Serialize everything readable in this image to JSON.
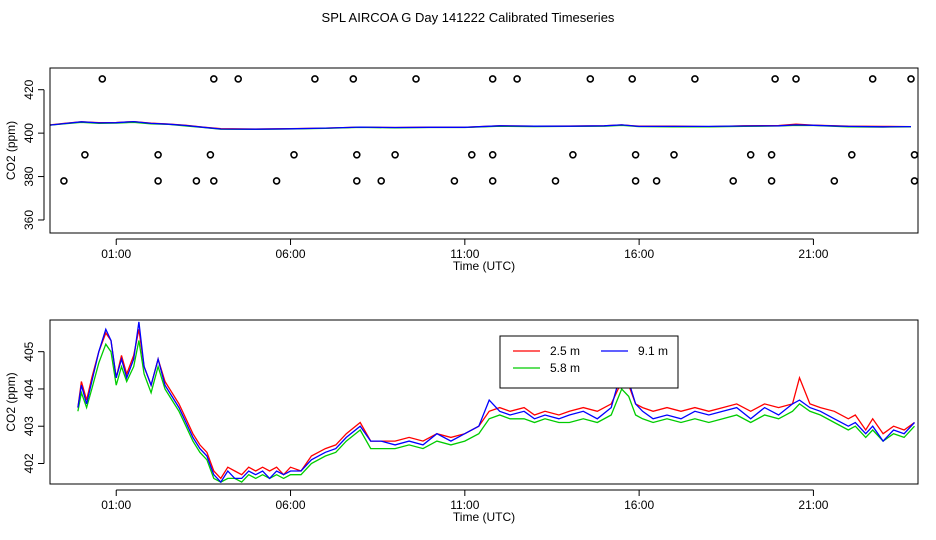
{
  "title": "SPL AIRCOA G  Day 141222  Calibrated Timeseries",
  "chart_data": [
    {
      "type": "line",
      "panel": "top",
      "xlabel": "Time (UTC)",
      "ylabel": "CO2 (ppm)",
      "x_ticks": [
        1,
        6,
        11,
        16,
        21
      ],
      "x_tick_labels": [
        "01:00",
        "06:00",
        "11:00",
        "16:00",
        "21:00"
      ],
      "xlim": [
        -0.9,
        24.0
      ],
      "ylim": [
        354,
        430
      ],
      "y_ticks": [
        360,
        380,
        400,
        420
      ],
      "y_tick_labels": [
        "360",
        "380",
        "400",
        "420"
      ],
      "grid": false,
      "legend": "none",
      "series": [
        {
          "color": "#ff0000",
          "x": [
            -1.0,
            -0.5,
            0.0,
            0.5,
            1.0,
            1.5,
            2.0,
            2.5,
            3.0,
            3.5,
            4.0,
            5.0,
            6.0,
            7.0,
            8.0,
            9.0,
            10.0,
            11.0,
            12.0,
            13.0,
            14.0,
            15.0,
            15.5,
            16.0,
            17.0,
            18.0,
            19.0,
            20.0,
            20.5,
            21.0,
            22.0,
            23.0,
            23.8
          ],
          "y": [
            403.6,
            404.5,
            405.2,
            404.8,
            404.9,
            405.3,
            404.6,
            404.2,
            403.6,
            402.8,
            402.1,
            401.9,
            402.1,
            402.3,
            402.8,
            402.6,
            402.8,
            402.7,
            403.4,
            403.2,
            403.3,
            403.4,
            403.8,
            403.2,
            403.2,
            403.0,
            403.4,
            403.5,
            404.1,
            403.7,
            403.2,
            403.1,
            403.0
          ]
        },
        {
          "color": "#00cc00",
          "x": [
            -1.0,
            -0.5,
            0.0,
            0.5,
            1.0,
            1.5,
            2.0,
            2.5,
            3.0,
            3.5,
            4.0,
            5.0,
            6.0,
            7.0,
            8.0,
            9.0,
            10.0,
            11.0,
            12.0,
            13.0,
            14.0,
            15.0,
            15.5,
            16.0,
            17.0,
            18.0,
            19.0,
            20.0,
            20.5,
            21.0,
            22.0,
            23.0,
            23.8
          ],
          "y": [
            403.5,
            404.3,
            405.0,
            404.5,
            404.6,
            405.0,
            404.3,
            404.0,
            403.3,
            402.6,
            401.8,
            401.7,
            401.9,
            402.2,
            402.7,
            402.4,
            402.6,
            402.6,
            403.2,
            403.0,
            403.1,
            403.2,
            403.6,
            403.0,
            402.9,
            402.9,
            403.1,
            403.3,
            403.6,
            403.5,
            402.9,
            402.8,
            402.9
          ]
        },
        {
          "color": "#0000ff",
          "x": [
            -1.0,
            -0.5,
            0.0,
            0.5,
            1.0,
            1.5,
            2.0,
            2.5,
            3.0,
            3.5,
            4.0,
            5.0,
            6.0,
            7.0,
            8.0,
            9.0,
            10.0,
            11.0,
            12.0,
            13.0,
            14.0,
            15.0,
            15.5,
            16.0,
            17.0,
            18.0,
            19.0,
            20.0,
            20.5,
            21.0,
            22.0,
            23.0,
            23.8
          ],
          "y": [
            403.5,
            404.4,
            405.2,
            404.7,
            404.8,
            405.3,
            404.5,
            404.1,
            403.5,
            402.7,
            401.9,
            401.8,
            402.0,
            402.3,
            402.8,
            402.6,
            402.7,
            402.7,
            403.4,
            403.2,
            403.2,
            403.4,
            403.8,
            403.1,
            403.1,
            403.1,
            403.3,
            403.4,
            403.8,
            403.6,
            403.1,
            402.9,
            403.0
          ]
        }
      ],
      "markers": {
        "shape": "open-circle",
        "x": [
          -0.5,
          0.1,
          0.6,
          2.2,
          2.2,
          3.3,
          3.7,
          3.8,
          3.8,
          4.5,
          5.6,
          6.1,
          6.7,
          7.8,
          7.9,
          7.9,
          8.6,
          9.0,
          9.6,
          10.7,
          11.2,
          11.8,
          11.8,
          11.8,
          12.5,
          13.6,
          14.1,
          14.6,
          15.8,
          15.9,
          15.9,
          16.5,
          17.0,
          17.6,
          18.7,
          19.2,
          19.8,
          19.8,
          19.9,
          20.5,
          21.6,
          22.1,
          22.7,
          23.8,
          23.9,
          23.9
        ],
        "y": [
          378,
          390,
          425,
          378,
          390,
          378,
          390,
          425,
          378,
          425,
          378,
          390,
          425,
          425,
          378,
          390,
          378,
          390,
          425,
          378,
          390,
          425,
          390,
          378,
          425,
          378,
          390,
          425,
          425,
          390,
          378,
          378,
          390,
          425,
          378,
          390,
          378,
          390,
          425,
          425,
          378,
          390,
          425,
          425,
          390,
          378
        ]
      }
    },
    {
      "type": "line",
      "panel": "bottom",
      "xlabel": "Time (UTC)",
      "ylabel": "CO2 (ppm)",
      "x_ticks": [
        1,
        6,
        11,
        16,
        21
      ],
      "x_tick_labels": [
        "01:00",
        "06:00",
        "11:00",
        "16:00",
        "21:00"
      ],
      "xlim": [
        -0.9,
        24.0
      ],
      "ylim": [
        401.45,
        405.85
      ],
      "y_ticks": [
        402,
        403,
        404,
        405
      ],
      "y_tick_labels": [
        "402",
        "403",
        "404",
        "405"
      ],
      "grid": false,
      "legend": "top-center",
      "series": [
        {
          "name": "2.5 m",
          "color": "#ff0000",
          "x": [
            -0.1,
            0.0,
            0.15,
            0.3,
            0.5,
            0.7,
            0.85,
            1.0,
            1.15,
            1.3,
            1.5,
            1.65,
            1.8,
            2.0,
            2.2,
            2.4,
            2.6,
            2.8,
            3.0,
            3.2,
            3.4,
            3.6,
            3.8,
            4.0,
            4.2,
            4.4,
            4.6,
            4.8,
            5.0,
            5.2,
            5.4,
            5.6,
            5.8,
            6.0,
            6.3,
            6.6,
            7.0,
            7.3,
            7.6,
            8.0,
            8.3,
            8.6,
            9.0,
            9.4,
            9.8,
            10.2,
            10.6,
            11.0,
            11.4,
            11.7,
            12.0,
            12.3,
            12.7,
            13.0,
            13.3,
            13.7,
            14.0,
            14.4,
            14.8,
            15.2,
            15.5,
            15.7,
            15.9,
            16.1,
            16.4,
            16.8,
            17.2,
            17.6,
            18.0,
            18.4,
            18.8,
            19.2,
            19.6,
            20.0,
            20.4,
            20.6,
            20.9,
            21.2,
            21.6,
            22.0,
            22.2,
            22.5,
            22.7,
            23.0,
            23.3,
            23.6,
            23.9
          ],
          "y": [
            403.5,
            404.2,
            403.7,
            404.3,
            405.0,
            405.5,
            405.3,
            404.3,
            404.9,
            404.4,
            404.9,
            405.6,
            404.6,
            404.1,
            404.8,
            404.2,
            403.9,
            403.6,
            403.2,
            402.8,
            402.5,
            402.3,
            401.8,
            401.6,
            401.9,
            401.8,
            401.7,
            401.9,
            401.8,
            401.9,
            401.8,
            401.9,
            401.7,
            401.9,
            401.8,
            402.2,
            402.4,
            402.5,
            402.8,
            403.1,
            402.6,
            402.6,
            402.6,
            402.7,
            402.6,
            402.8,
            402.7,
            402.8,
            403.0,
            403.4,
            403.5,
            403.4,
            403.5,
            403.3,
            403.4,
            403.3,
            403.4,
            403.5,
            403.4,
            403.6,
            404.2,
            404.1,
            403.6,
            403.5,
            403.4,
            403.5,
            403.4,
            403.5,
            403.4,
            403.5,
            403.6,
            403.4,
            403.6,
            403.5,
            403.6,
            404.3,
            403.6,
            403.5,
            403.4,
            403.2,
            403.3,
            402.9,
            403.2,
            402.8,
            403.0,
            402.9,
            403.1
          ]
        },
        {
          "name": "5.8 m",
          "color": "#00cc00",
          "x": [
            -0.1,
            0.0,
            0.15,
            0.3,
            0.5,
            0.7,
            0.85,
            1.0,
            1.15,
            1.3,
            1.5,
            1.65,
            1.8,
            2.0,
            2.2,
            2.4,
            2.6,
            2.8,
            3.0,
            3.2,
            3.4,
            3.6,
            3.8,
            4.0,
            4.2,
            4.4,
            4.6,
            4.8,
            5.0,
            5.2,
            5.4,
            5.6,
            5.8,
            6.0,
            6.3,
            6.6,
            7.0,
            7.3,
            7.6,
            8.0,
            8.3,
            8.6,
            9.0,
            9.4,
            9.8,
            10.2,
            10.6,
            11.0,
            11.4,
            11.7,
            12.0,
            12.3,
            12.7,
            13.0,
            13.3,
            13.7,
            14.0,
            14.4,
            14.8,
            15.2,
            15.5,
            15.7,
            15.9,
            16.1,
            16.4,
            16.8,
            17.2,
            17.6,
            18.0,
            18.4,
            18.8,
            19.2,
            19.6,
            20.0,
            20.4,
            20.6,
            20.9,
            21.2,
            21.6,
            22.0,
            22.2,
            22.5,
            22.7,
            23.0,
            23.3,
            23.6,
            23.9
          ],
          "y": [
            403.4,
            403.9,
            403.5,
            404.0,
            404.7,
            405.2,
            405.0,
            404.1,
            404.6,
            404.2,
            404.6,
            405.3,
            404.4,
            403.9,
            404.6,
            404.0,
            403.7,
            403.4,
            403.0,
            402.6,
            402.3,
            402.1,
            401.6,
            401.5,
            401.6,
            401.6,
            401.5,
            401.7,
            401.6,
            401.7,
            401.6,
            401.7,
            401.6,
            401.7,
            401.7,
            402.0,
            402.2,
            402.3,
            402.6,
            402.9,
            402.4,
            402.4,
            402.4,
            402.5,
            402.4,
            402.6,
            402.5,
            402.6,
            402.8,
            403.2,
            403.3,
            403.2,
            403.2,
            403.1,
            403.2,
            403.1,
            403.1,
            403.2,
            403.1,
            403.3,
            404.0,
            403.8,
            403.3,
            403.2,
            403.1,
            403.2,
            403.1,
            403.2,
            403.1,
            403.2,
            403.3,
            403.1,
            403.3,
            403.2,
            403.4,
            403.6,
            403.4,
            403.3,
            403.1,
            402.9,
            403.0,
            402.7,
            402.9,
            402.6,
            402.8,
            402.7,
            403.0
          ]
        },
        {
          "name": "9.1 m",
          "color": "#0000ff",
          "x": [
            -0.1,
            0.0,
            0.15,
            0.3,
            0.5,
            0.7,
            0.85,
            1.0,
            1.15,
            1.3,
            1.5,
            1.65,
            1.8,
            2.0,
            2.2,
            2.4,
            2.6,
            2.8,
            3.0,
            3.2,
            3.4,
            3.6,
            3.8,
            4.0,
            4.2,
            4.4,
            4.6,
            4.8,
            5.0,
            5.2,
            5.4,
            5.6,
            5.8,
            6.0,
            6.3,
            6.6,
            7.0,
            7.3,
            7.6,
            8.0,
            8.3,
            8.6,
            9.0,
            9.4,
            9.8,
            10.2,
            10.6,
            11.0,
            11.4,
            11.7,
            12.0,
            12.3,
            12.7,
            13.0,
            13.3,
            13.7,
            14.0,
            14.4,
            14.8,
            15.2,
            15.5,
            15.7,
            15.9,
            16.1,
            16.4,
            16.8,
            17.2,
            17.6,
            18.0,
            18.4,
            18.8,
            19.2,
            19.6,
            20.0,
            20.4,
            20.6,
            20.9,
            21.2,
            21.6,
            22.0,
            22.2,
            22.5,
            22.7,
            23.0,
            23.3,
            23.6,
            23.9
          ],
          "y": [
            403.5,
            404.1,
            403.6,
            404.2,
            405.0,
            405.6,
            405.3,
            404.3,
            404.8,
            404.3,
            404.8,
            405.8,
            404.6,
            404.1,
            404.8,
            404.1,
            403.8,
            403.5,
            403.1,
            402.7,
            402.4,
            402.2,
            401.7,
            401.5,
            401.8,
            401.6,
            401.6,
            401.8,
            401.7,
            401.8,
            401.6,
            401.8,
            401.7,
            401.8,
            401.8,
            402.1,
            402.3,
            402.4,
            402.7,
            403.0,
            402.6,
            402.6,
            402.5,
            402.6,
            402.5,
            402.8,
            402.6,
            402.8,
            403.0,
            403.7,
            403.4,
            403.3,
            403.4,
            403.2,
            403.3,
            403.2,
            403.3,
            403.4,
            403.2,
            403.5,
            404.5,
            404.2,
            403.6,
            403.4,
            403.2,
            403.3,
            403.2,
            403.4,
            403.3,
            403.4,
            403.5,
            403.2,
            403.5,
            403.3,
            403.6,
            403.7,
            403.5,
            403.4,
            403.2,
            403.0,
            403.1,
            402.8,
            403.0,
            402.6,
            402.9,
            402.8,
            403.1
          ]
        }
      ]
    }
  ]
}
